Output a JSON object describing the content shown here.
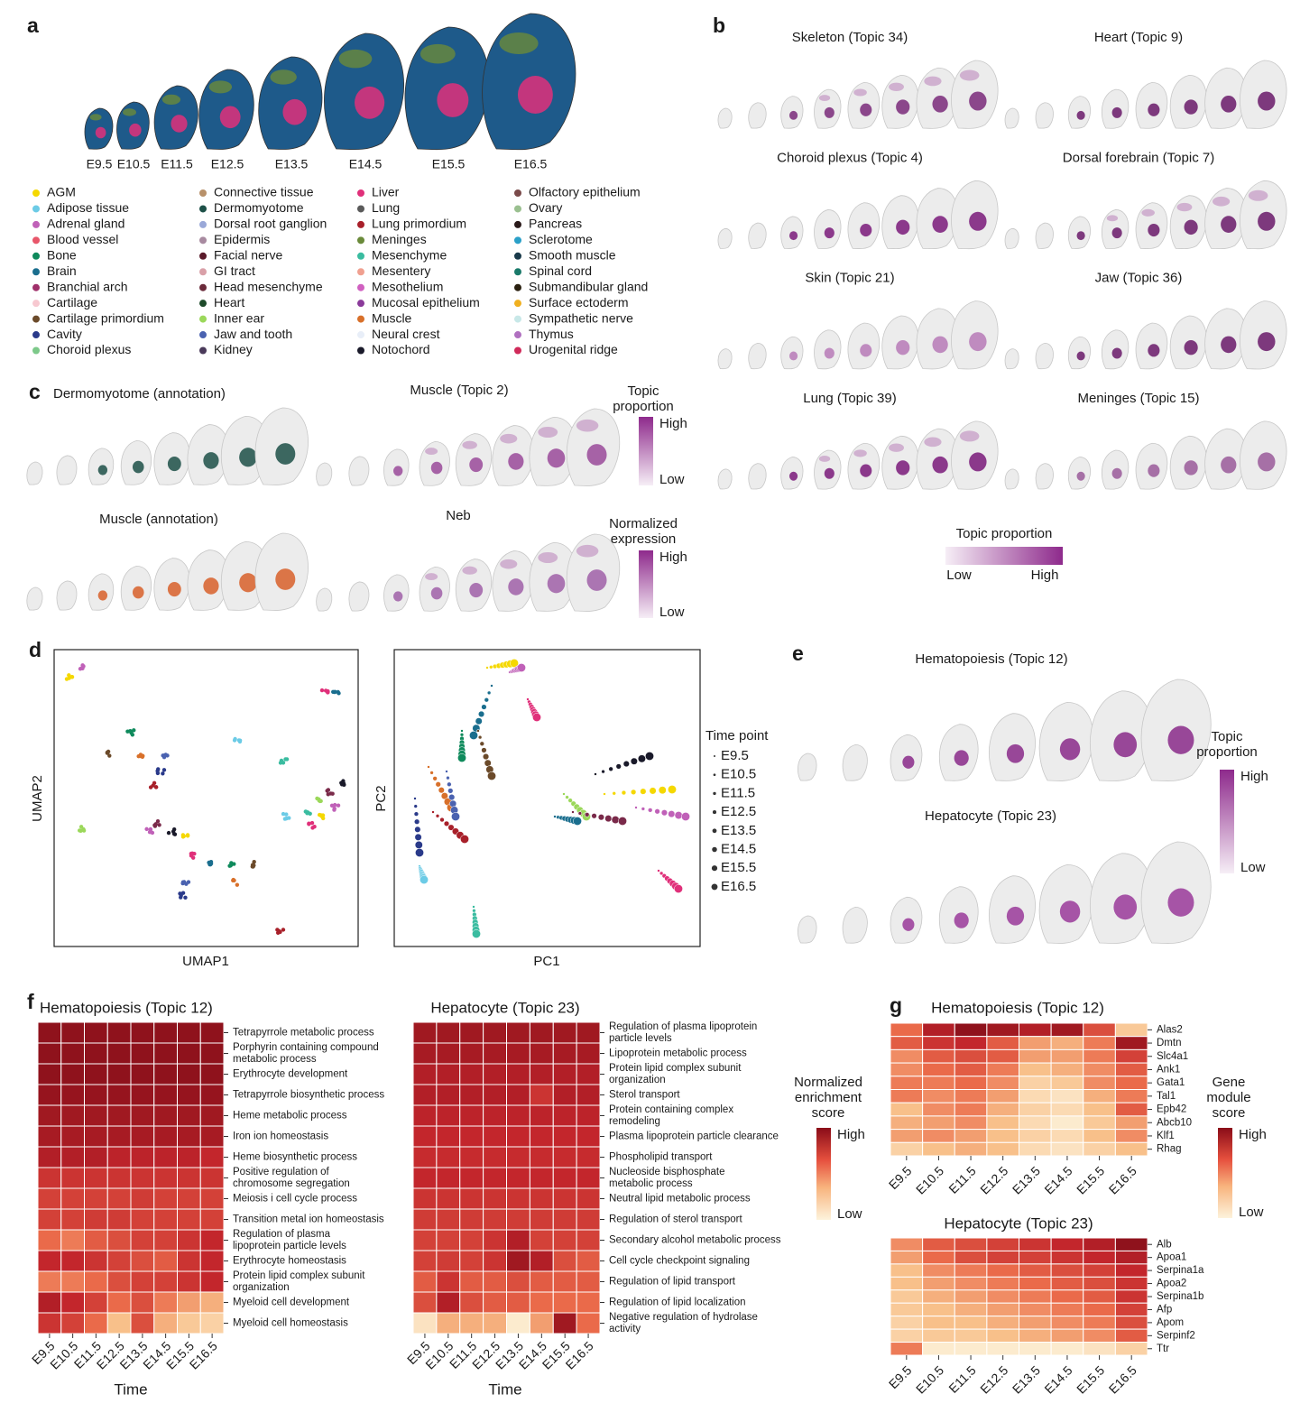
{
  "panels": {
    "a": {
      "label": "a",
      "stages": [
        "E9.5",
        "E10.5",
        "E11.5",
        "E12.5",
        "E13.5",
        "E14.5",
        "E15.5",
        "E16.5"
      ],
      "legend": [
        {
          "name": "AGM",
          "color": "#f5d800"
        },
        {
          "name": "Adipose tissue",
          "color": "#6ccbe6"
        },
        {
          "name": "Adrenal gland",
          "color": "#c061b8"
        },
        {
          "name": "Blood vessel",
          "color": "#e8566a"
        },
        {
          "name": "Bone",
          "color": "#0f8a5c"
        },
        {
          "name": "Brain",
          "color": "#1a6e8e"
        },
        {
          "name": "Branchial arch",
          "color": "#a0306a"
        },
        {
          "name": "Cartilage",
          "color": "#f7c8d0"
        },
        {
          "name": "Cartilage primordium",
          "color": "#6b4a2a"
        },
        {
          "name": "Cavity",
          "color": "#2a3a8a"
        },
        {
          "name": "Choroid plexus",
          "color": "#7dc98a"
        },
        {
          "name": "Connective tissue",
          "color": "#b8916a"
        },
        {
          "name": "Dermomyotome",
          "color": "#1d5048"
        },
        {
          "name": "Dorsal root ganglion",
          "color": "#9aa8d8"
        },
        {
          "name": "Epidermis",
          "color": "#a88aa0"
        },
        {
          "name": "Facial nerve",
          "color": "#5a1a2a"
        },
        {
          "name": "GI tract",
          "color": "#d9a0a8"
        },
        {
          "name": "Head mesenchyme",
          "color": "#6a2a3a"
        },
        {
          "name": "Heart",
          "color": "#1d4a2a"
        },
        {
          "name": "Inner ear",
          "color": "#9bd85a"
        },
        {
          "name": "Jaw and tooth",
          "color": "#4a62b0"
        },
        {
          "name": "Kidney",
          "color": "#4a3a5a"
        },
        {
          "name": "Liver",
          "color": "#e0307a"
        },
        {
          "name": "Lung",
          "color": "#5a5a5a"
        },
        {
          "name": "Lung primordium",
          "color": "#a8202a"
        },
        {
          "name": "Meninges",
          "color": "#6a8a3a"
        },
        {
          "name": "Mesenchyme",
          "color": "#3abca0"
        },
        {
          "name": "Mesentery",
          "color": "#f0a090"
        },
        {
          "name": "Mesothelium",
          "color": "#d060c0"
        },
        {
          "name": "Mucosal epithelium",
          "color": "#8a3a9a"
        },
        {
          "name": "Muscle",
          "color": "#d8702a"
        },
        {
          "name": "Neural crest",
          "color": "#e8eef8"
        },
        {
          "name": "Notochord",
          "color": "#1a1a2a"
        },
        {
          "name": "Olfactory epithelium",
          "color": "#7a4a4a"
        },
        {
          "name": "Ovary",
          "color": "#9ac090"
        },
        {
          "name": "Pancreas",
          "color": "#2a1a1a"
        },
        {
          "name": "Sclerotome",
          "color": "#2aa0c8"
        },
        {
          "name": "Smooth muscle",
          "color": "#1a3a4a"
        },
        {
          "name": "Spinal cord",
          "color": "#1a7a6a"
        },
        {
          "name": "Submandibular gland",
          "color": "#2a2010"
        },
        {
          "name": "Surface ectoderm",
          "color": "#f0b020"
        },
        {
          "name": "Sympathetic nerve",
          "color": "#c8e8e8"
        },
        {
          "name": "Thymus",
          "color": "#b070c0"
        },
        {
          "name": "Urogenital ridge",
          "color": "#d02a5a"
        }
      ]
    },
    "b": {
      "label": "b",
      "maps": [
        "Skeleton (Topic 34)",
        "Heart (Topic 9)",
        "Choroid plexus (Topic 4)",
        "Dorsal forebrain (Topic 7)",
        "Skin (Topic 21)",
        "Jaw (Topic 36)",
        "Lung (Topic 39)",
        "Meninges (Topic 15)"
      ],
      "colorbar": {
        "title": [
          "Topic proportion"
        ],
        "low": "Low",
        "high": "High"
      }
    },
    "c": {
      "label": "c",
      "maps": [
        "Dermomyotome (annotation)",
        "Muscle (Topic 2)",
        "Muscle (annotation)",
        "Neb"
      ],
      "colorbars": [
        {
          "title": [
            "Topic",
            "proportion"
          ],
          "high": "High",
          "low": "Low"
        },
        {
          "title": [
            "Normalized",
            "expression"
          ],
          "high": "High",
          "low": "Low"
        }
      ]
    },
    "d": {
      "label": "d",
      "umap": {
        "xlabel": "UMAP1",
        "ylabel": "UMAP2"
      },
      "pca": {
        "xlabel": "PC1",
        "ylabel": "PC2"
      },
      "legend_title": "Time point",
      "time_points": [
        "E9.5",
        "E10.5",
        "E11.5",
        "E12.5",
        "E13.5",
        "E14.5",
        "E15.5",
        "E16.5"
      ]
    },
    "e": {
      "label": "e",
      "maps": [
        "Hematopoiesis (Topic 12)",
        "Hepatocyte (Topic 23)"
      ],
      "colorbar": {
        "title": [
          "Topic",
          "proportion"
        ],
        "high": "High",
        "low": "Low"
      }
    },
    "f": {
      "label": "f",
      "xlabel": "Time",
      "columns": [
        "E9.5",
        "E10.5",
        "E11.5",
        "E12.5",
        "E13.5",
        "E14.5",
        "E15.5",
        "E16.5"
      ],
      "heatmaps": [
        {
          "title": "Hematopoiesis (Topic 12)",
          "rows": [
            "Tetrapyrrole metabolic process",
            [
              "Porphyrin containing compound",
              "metabolic process"
            ],
            "Erythrocyte development",
            "Tetrapyrrole biosynthetic process",
            "Heme metabolic process",
            "Iron ion homeostasis",
            "Heme biosynthetic process",
            [
              "Positive regulation of",
              "chromosome segregation"
            ],
            "Meiosis i cell cycle process",
            "Transition metal ion homeostasis",
            [
              "Regulation of plasma",
              "lipoprotein particle levels"
            ],
            "Erythrocyte homeostasis",
            [
              "Protein lipid complex subunit",
              "organization"
            ],
            "Myeloid cell development",
            "Myeloid cell homeostasis"
          ],
          "values": [
            [
              0.95,
              0.95,
              0.95,
              0.95,
              0.95,
              0.95,
              0.95,
              0.95
            ],
            [
              0.95,
              0.95,
              0.95,
              0.95,
              0.95,
              0.95,
              0.95,
              0.95
            ],
            [
              0.95,
              0.95,
              0.95,
              0.95,
              0.95,
              0.95,
              0.95,
              0.95
            ],
            [
              0.93,
              0.93,
              0.93,
              0.93,
              0.93,
              0.93,
              0.93,
              0.93
            ],
            [
              0.9,
              0.9,
              0.9,
              0.9,
              0.9,
              0.9,
              0.9,
              0.9
            ],
            [
              0.88,
              0.88,
              0.88,
              0.88,
              0.88,
              0.88,
              0.88,
              0.88
            ],
            [
              0.85,
              0.85,
              0.85,
              0.82,
              0.82,
              0.82,
              0.82,
              0.8
            ],
            [
              0.75,
              0.75,
              0.75,
              0.75,
              0.75,
              0.75,
              0.75,
              0.75
            ],
            [
              0.7,
              0.7,
              0.7,
              0.7,
              0.72,
              0.7,
              0.7,
              0.7
            ],
            [
              0.7,
              0.7,
              0.72,
              0.72,
              0.7,
              0.7,
              0.7,
              0.7
            ],
            [
              0.55,
              0.5,
              0.6,
              0.65,
              0.7,
              0.7,
              0.75,
              0.8
            ],
            [
              0.8,
              0.8,
              0.75,
              0.7,
              0.65,
              0.6,
              0.75,
              0.8
            ],
            [
              0.5,
              0.5,
              0.55,
              0.65,
              0.7,
              0.7,
              0.75,
              0.8
            ],
            [
              0.85,
              0.8,
              0.7,
              0.55,
              0.65,
              0.5,
              0.4,
              0.35
            ],
            [
              0.75,
              0.7,
              0.55,
              0.3,
              0.65,
              0.35,
              0.25,
              0.2
            ]
          ]
        },
        {
          "title": "Hepatocyte (Topic 23)",
          "rows": [
            [
              "Regulation of plasma lipoprotein",
              "particle levels"
            ],
            "Lipoprotein metabolic process",
            [
              "Protein lipid complex subunit",
              "organization"
            ],
            "Sterol transport",
            [
              "Protein containing complex",
              "remodeling"
            ],
            "Plasma lipoprotein particle clearance",
            "Phospholipid transport",
            [
              "Nucleoside bisphosphate",
              "metabolic process"
            ],
            "Neutral lipid metabolic process",
            "Regulation of sterol transport",
            "Secondary alcohol metabolic process",
            "Cell cycle checkpoint signaling",
            "Regulation of lipid transport",
            "Regulation of lipid localization",
            [
              "Negative regulation of hydrolase",
              "activity"
            ]
          ],
          "values": [
            [
              0.9,
              0.9,
              0.9,
              0.9,
              0.9,
              0.9,
              0.9,
              0.9
            ],
            [
              0.88,
              0.88,
              0.88,
              0.88,
              0.88,
              0.88,
              0.88,
              0.88
            ],
            [
              0.85,
              0.85,
              0.85,
              0.85,
              0.85,
              0.85,
              0.85,
              0.85
            ],
            [
              0.85,
              0.85,
              0.85,
              0.85,
              0.85,
              0.75,
              0.85,
              0.85
            ],
            [
              0.82,
              0.82,
              0.82,
              0.82,
              0.82,
              0.82,
              0.82,
              0.82
            ],
            [
              0.8,
              0.8,
              0.8,
              0.8,
              0.8,
              0.8,
              0.8,
              0.8
            ],
            [
              0.78,
              0.78,
              0.78,
              0.78,
              0.78,
              0.78,
              0.78,
              0.78
            ],
            [
              0.8,
              0.8,
              0.8,
              0.8,
              0.8,
              0.8,
              0.8,
              0.8
            ],
            [
              0.75,
              0.75,
              0.75,
              0.75,
              0.75,
              0.75,
              0.75,
              0.75
            ],
            [
              0.72,
              0.72,
              0.72,
              0.72,
              0.72,
              0.72,
              0.72,
              0.72
            ],
            [
              0.7,
              0.7,
              0.7,
              0.75,
              0.85,
              0.7,
              0.7,
              0.7
            ],
            [
              0.7,
              0.72,
              0.7,
              0.75,
              0.9,
              0.85,
              0.65,
              0.6
            ],
            [
              0.6,
              0.75,
              0.6,
              0.6,
              0.65,
              0.6,
              0.6,
              0.6
            ],
            [
              0.65,
              0.85,
              0.65,
              0.6,
              0.6,
              0.55,
              0.55,
              0.55
            ],
            [
              0.1,
              0.35,
              0.35,
              0.35,
              0.05,
              0.4,
              0.9,
              0.55
            ]
          ]
        }
      ],
      "colorbar": {
        "title": [
          "Normalized",
          "enrichment",
          "score"
        ],
        "high": "High",
        "low": "Low"
      }
    },
    "g": {
      "label": "g",
      "columns": [
        "E9.5",
        "E10.5",
        "E11.5",
        "E12.5",
        "E13.5",
        "E14.5",
        "E15.5",
        "E16.5"
      ],
      "heatmaps": [
        {
          "title": "Hematopoiesis (Topic 12)",
          "rows": [
            "Alas2",
            "Dmtn",
            "Slc4a1",
            "Ank1",
            "Gata1",
            "Tal1",
            "Epb42",
            "Abcb10",
            "Klf1",
            "Rhag"
          ],
          "values": [
            [
              0.55,
              0.85,
              0.95,
              0.9,
              0.85,
              0.9,
              0.65,
              0.25
            ],
            [
              0.6,
              0.75,
              0.8,
              0.6,
              0.4,
              0.35,
              0.5,
              0.9
            ],
            [
              0.45,
              0.6,
              0.65,
              0.6,
              0.4,
              0.4,
              0.5,
              0.7
            ],
            [
              0.45,
              0.55,
              0.6,
              0.5,
              0.3,
              0.35,
              0.45,
              0.6
            ],
            [
              0.5,
              0.5,
              0.55,
              0.45,
              0.2,
              0.25,
              0.45,
              0.55
            ],
            [
              0.5,
              0.45,
              0.5,
              0.4,
              0.15,
              0.1,
              0.35,
              0.5
            ],
            [
              0.3,
              0.45,
              0.5,
              0.35,
              0.2,
              0.15,
              0.3,
              0.6
            ],
            [
              0.35,
              0.4,
              0.45,
              0.3,
              0.15,
              0.05,
              0.25,
              0.4
            ],
            [
              0.4,
              0.45,
              0.4,
              0.3,
              0.2,
              0.15,
              0.3,
              0.45
            ],
            [
              0.2,
              0.3,
              0.35,
              0.3,
              0.15,
              0.1,
              0.2,
              0.3
            ]
          ]
        },
        {
          "title": "Hepatocyte (Topic 23)",
          "rows": [
            "Alb",
            "Apoa1",
            "Serpina1a",
            "Apoa2",
            "Serpina1b",
            "Afp",
            "Apom",
            "Serpinf2",
            "Ttr"
          ],
          "values": [
            [
              0.45,
              0.6,
              0.65,
              0.7,
              0.75,
              0.8,
              0.85,
              0.95
            ],
            [
              0.4,
              0.55,
              0.65,
              0.7,
              0.7,
              0.75,
              0.8,
              0.85
            ],
            [
              0.3,
              0.45,
              0.5,
              0.55,
              0.6,
              0.65,
              0.7,
              0.8
            ],
            [
              0.3,
              0.4,
              0.45,
              0.5,
              0.55,
              0.6,
              0.65,
              0.75
            ],
            [
              0.25,
              0.35,
              0.4,
              0.45,
              0.5,
              0.55,
              0.6,
              0.75
            ],
            [
              0.25,
              0.3,
              0.35,
              0.4,
              0.45,
              0.5,
              0.55,
              0.7
            ],
            [
              0.2,
              0.3,
              0.3,
              0.35,
              0.4,
              0.45,
              0.5,
              0.65
            ],
            [
              0.2,
              0.25,
              0.25,
              0.3,
              0.35,
              0.4,
              0.45,
              0.6
            ],
            [
              0.5,
              0.05,
              0.05,
              0.05,
              0.05,
              0.05,
              0.1,
              0.2
            ]
          ]
        }
      ],
      "colorbar": {
        "title": [
          "Gene",
          "module",
          "score"
        ],
        "high": "High",
        "low": "Low"
      }
    }
  }
}
